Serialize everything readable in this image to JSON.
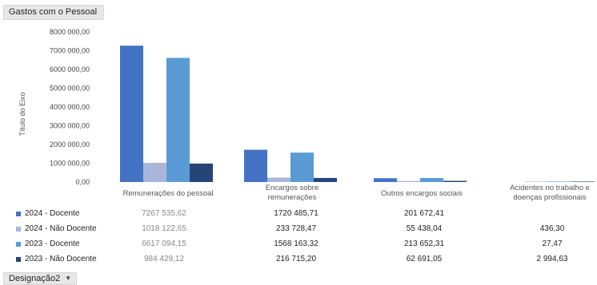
{
  "header": {
    "title": "Gastos com o Pessoal"
  },
  "footer": {
    "field_label": "Designação2",
    "arrow": "▼"
  },
  "chart_data": {
    "type": "bar",
    "title": "Gastos com o Pessoal",
    "xlabel": "",
    "ylabel": "Título do Eixo",
    "ylim": [
      0,
      8000000
    ],
    "yticks": [
      "8000 000,00",
      "7000 000,00",
      "6000 000,00",
      "5000 000,00",
      "4000 000,00",
      "3000 000,00",
      "2000 000,00",
      "1000 000,00",
      "0,00"
    ],
    "categories": [
      [
        "Remunerações do pessoal"
      ],
      [
        "Encargos sobre",
        "remunerações"
      ],
      [
        "Outros encargos sociais"
      ],
      [
        "Acidentes no trabalho e",
        "doenças profissionais"
      ]
    ],
    "series": [
      {
        "name": "2024 - Docente",
        "color": "#4472c4",
        "values": [
          7267535.62,
          1720485.71,
          201672.41,
          null
        ],
        "labels": [
          "7267 535,62",
          "1720 485,71",
          "201 672,41",
          ""
        ]
      },
      {
        "name": "2024 - Não Docente",
        "color": "#a9b5d9",
        "values": [
          1018122.65,
          233728.47,
          55438.04,
          436.3
        ],
        "labels": [
          "1018 122,65",
          "233 728,47",
          "55 438,04",
          "436,30"
        ]
      },
      {
        "name": "2023 - Docente",
        "color": "#5b9bd5",
        "values": [
          6617094.15,
          1568163.32,
          213652.31,
          27.47
        ],
        "labels": [
          "6617 094,15",
          "1568 163,32",
          "213 652,31",
          "27,47"
        ]
      },
      {
        "name": "2023 - Não Docente",
        "color": "#264478",
        "values": [
          984429.12,
          216715.2,
          62691.05,
          2994.63
        ],
        "labels": [
          "984 429,12",
          "216 715,20",
          "62 691,05",
          "2 994,63"
        ]
      }
    ],
    "grid": false,
    "legend": "table-below"
  }
}
